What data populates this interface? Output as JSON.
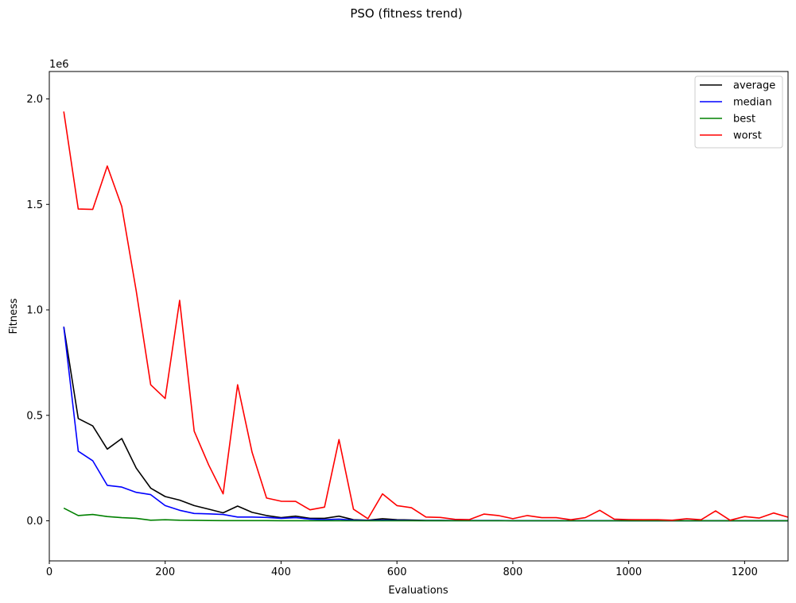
{
  "chart_data": {
    "type": "line",
    "title": "PSO (fitness trend)",
    "xlabel": "Evaluations",
    "ylabel": "Fitness",
    "y_offset_label": "1e6",
    "xlim": [
      0,
      1275
    ],
    "ylim": [
      -190000,
      2130000
    ],
    "x_ticks": [
      0,
      200,
      400,
      600,
      800,
      1000,
      1200
    ],
    "x_tick_labels": [
      "0",
      "200",
      "400",
      "600",
      "800",
      "1000",
      "1200"
    ],
    "y_ticks": [
      0,
      500000,
      1000000,
      1500000,
      2000000
    ],
    "y_tick_labels": [
      "0.0",
      "0.5",
      "1.0",
      "1.5",
      "2.0"
    ],
    "legend_position": "top-right",
    "grid": false,
    "x": [
      25,
      50,
      75,
      100,
      125,
      150,
      175,
      200,
      225,
      250,
      275,
      300,
      325,
      350,
      375,
      400,
      425,
      450,
      475,
      500,
      525,
      550,
      575,
      600,
      625,
      650,
      675,
      700,
      725,
      750,
      775,
      800,
      825,
      850,
      875,
      900,
      925,
      950,
      975,
      1000,
      1025,
      1050,
      1075,
      1100,
      1125,
      1150,
      1175,
      1200,
      1225,
      1250,
      1275
    ],
    "series": [
      {
        "name": "average",
        "color": "#000000",
        "values": [
          920000,
          485000,
          450000,
          340000,
          390000,
          250000,
          155000,
          115000,
          98000,
          72000,
          55000,
          38000,
          70000,
          40000,
          25000,
          15000,
          22000,
          12000,
          12000,
          22000,
          5000,
          3000,
          10000,
          5000,
          4000,
          2000,
          2000,
          1500,
          1500,
          1500,
          1500,
          1000,
          1000,
          1000,
          1000,
          800,
          800,
          800,
          800,
          600,
          600,
          600,
          600,
          500,
          500,
          500,
          500,
          500,
          400,
          400,
          400
        ]
      },
      {
        "name": "median",
        "color": "#0000ff",
        "values": [
          920000,
          330000,
          285000,
          168000,
          160000,
          135000,
          124000,
          72000,
          50000,
          35000,
          33000,
          30000,
          18000,
          18000,
          16000,
          12000,
          15000,
          8000,
          6000,
          8000,
          3000,
          2000,
          3000,
          2000,
          1500,
          1000,
          1000,
          800,
          800,
          800,
          800,
          600,
          600,
          600,
          600,
          500,
          500,
          500,
          500,
          400,
          400,
          400,
          400,
          300,
          300,
          300,
          300,
          300,
          300,
          300,
          300
        ]
      },
      {
        "name": "best",
        "color": "#008000",
        "values": [
          60000,
          25000,
          30000,
          20000,
          15000,
          12000,
          3000,
          5000,
          3000,
          2500,
          1500,
          1000,
          1000,
          1000,
          1000,
          500,
          500,
          500,
          500,
          500,
          300,
          300,
          300,
          300,
          200,
          200,
          200,
          200,
          200,
          200,
          200,
          150,
          150,
          150,
          150,
          100,
          100,
          100,
          100,
          100,
          100,
          100,
          100,
          100,
          100,
          100,
          100,
          100,
          100,
          100,
          100
        ]
      },
      {
        "name": "worst",
        "color": "#ff0000",
        "values": [
          1940000,
          1478000,
          1476000,
          1682000,
          1490000,
          1090000,
          645000,
          580000,
          1045000,
          425000,
          265000,
          128000,
          645000,
          325000,
          108000,
          93000,
          92000,
          52000,
          65000,
          385000,
          55000,
          10000,
          128000,
          72000,
          62000,
          18000,
          16000,
          7000,
          6000,
          32000,
          25000,
          10000,
          25000,
          15000,
          15000,
          5000,
          15000,
          50000,
          8000,
          6000,
          5000,
          5000,
          3000,
          10000,
          5000,
          47000,
          3000,
          20000,
          13000,
          37000,
          17000
        ]
      }
    ]
  }
}
